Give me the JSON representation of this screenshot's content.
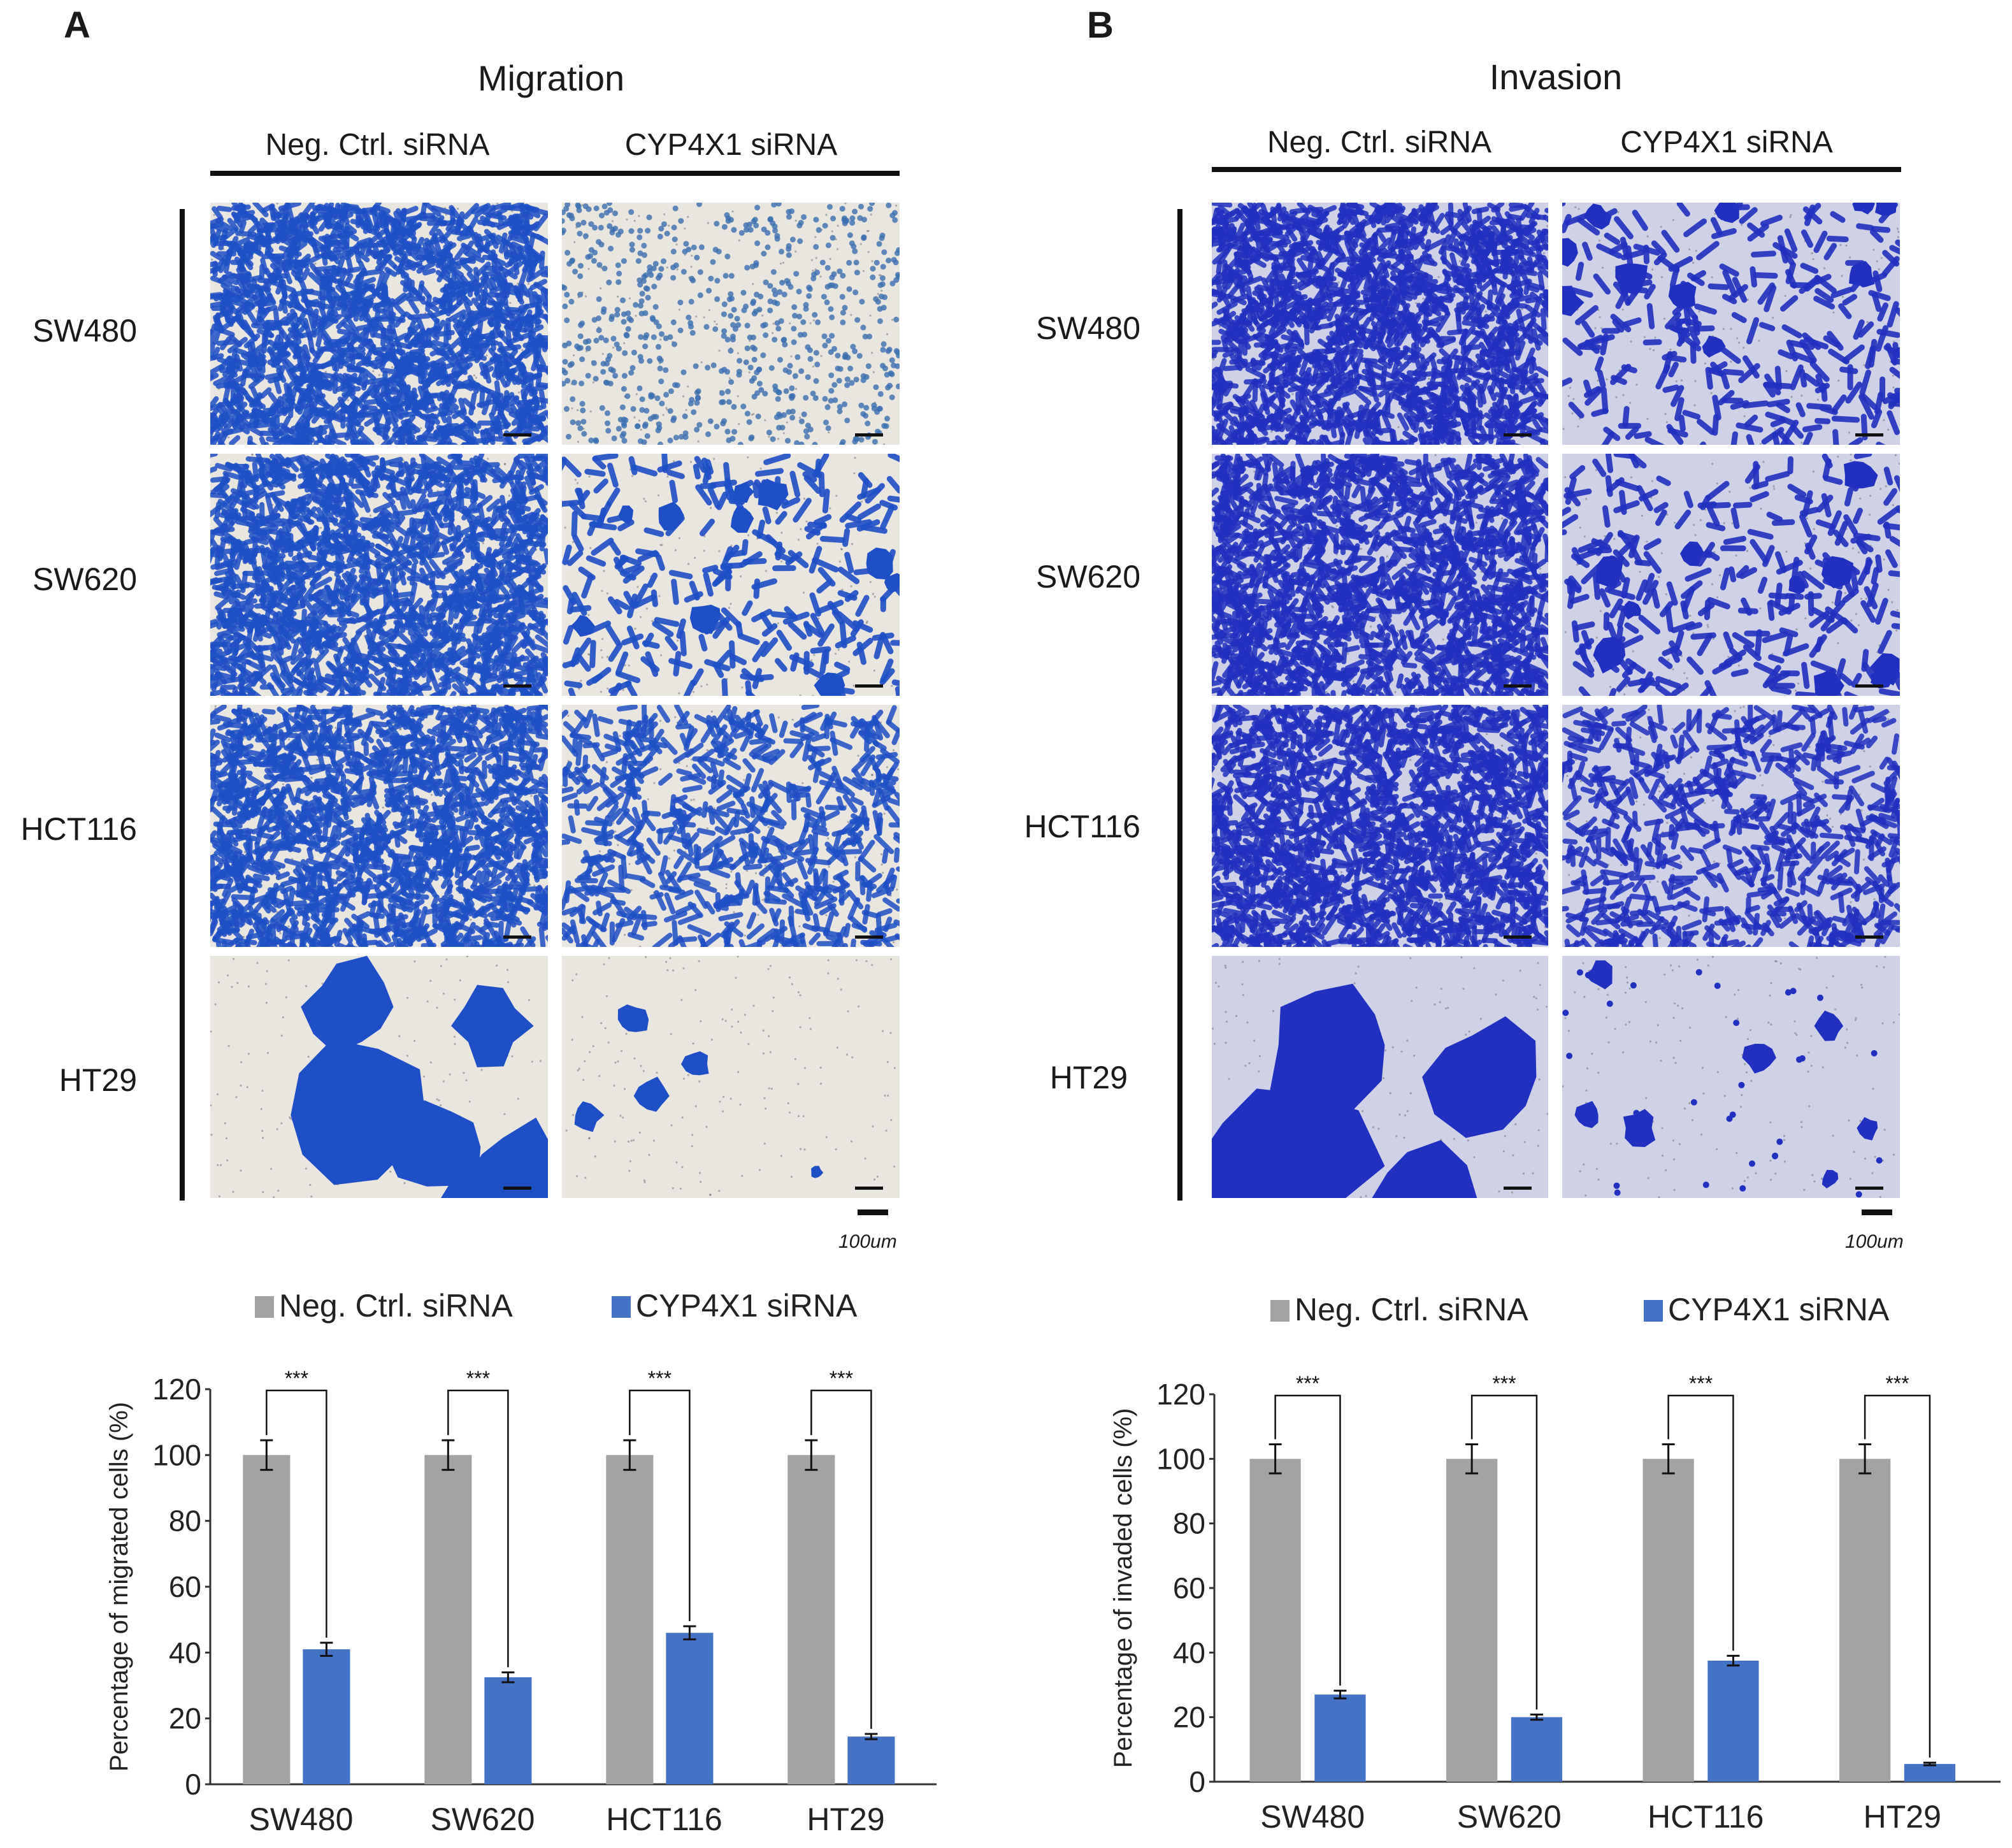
{
  "panels": [
    {
      "letter": "A",
      "title": "Migration",
      "columns": [
        "Neg. Ctrl. siRNA",
        "CYP4X1 siRNA"
      ],
      "rows": [
        "SW480",
        "SW620",
        "HCT116",
        "HT29"
      ],
      "scale_bar_label": "100um"
    },
    {
      "letter": "B",
      "title": "Invasion",
      "columns": [
        "Neg. Ctrl. siRNA",
        "CYP4X1 siRNA"
      ],
      "rows": [
        "SW480",
        "SW620",
        "HCT116",
        "HT29"
      ],
      "scale_bar_label": "100um"
    }
  ],
  "colors": {
    "neg": "#a3a3a3",
    "cyp": "#4472c4",
    "stain_migration": "#1f4fc7",
    "stain_invasion": "#2030c0",
    "bg_migration": "#e8e6de",
    "bg_invasion": "#cfd2e6"
  },
  "chart_data": [
    {
      "type": "bar",
      "panel": "A",
      "categories": [
        "SW480",
        "SW620",
        "HCT116",
        "HT29"
      ],
      "series": [
        {
          "name": "Neg. Ctrl. siRNA",
          "values": [
            100,
            100,
            100,
            100
          ],
          "errors": [
            4.5,
            4.5,
            4.5,
            4.5
          ]
        },
        {
          "name": "CYP4X1 siRNA",
          "values": [
            41,
            32.5,
            46,
            14.5
          ],
          "errors": [
            2,
            1.5,
            2,
            0.8
          ]
        }
      ],
      "significance": [
        "***",
        "***",
        "***",
        "***"
      ],
      "ylabel": "Percentage of migrated cells (%)",
      "xlabel": "",
      "ylim": [
        0,
        120
      ],
      "yticks": [
        0,
        20,
        40,
        60,
        80,
        100,
        120
      ],
      "legend_position": "top"
    },
    {
      "type": "bar",
      "panel": "B",
      "categories": [
        "SW480",
        "SW620",
        "HCT116",
        "HT29"
      ],
      "series": [
        {
          "name": "Neg. Ctrl. siRNA",
          "values": [
            100,
            100,
            100,
            100
          ],
          "errors": [
            4.5,
            4.5,
            4.5,
            4.5
          ]
        },
        {
          "name": "CYP4X1 siRNA",
          "values": [
            27,
            20,
            37.5,
            5.5
          ],
          "errors": [
            1.2,
            0.8,
            1.5,
            0.4
          ]
        }
      ],
      "significance": [
        "***",
        "***",
        "***",
        "***"
      ],
      "ylabel": "Percentage of invaded cells (%)",
      "xlabel": "",
      "ylim": [
        0,
        120
      ],
      "yticks": [
        0,
        20,
        40,
        60,
        80,
        100,
        120
      ],
      "legend_position": "top"
    }
  ]
}
